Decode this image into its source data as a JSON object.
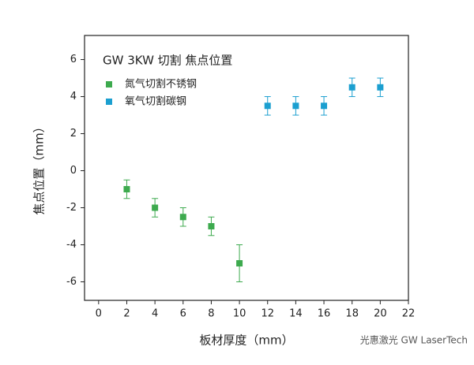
{
  "chart_data": {
    "type": "scatter",
    "title": "GW 3KW 切割 焦点位置",
    "x_label": "板材厚度（mm）",
    "y_label": "焦点位置（mm）",
    "series": [
      {
        "name": "氮气切割不锈钢",
        "color": "#3daa4e",
        "x": [
          2,
          4,
          6,
          8,
          10
        ],
        "values": [
          -1,
          -2,
          -2.5,
          -3,
          -5
        ],
        "errors": [
          0.5,
          0.5,
          0.5,
          0.5,
          1
        ]
      },
      {
        "name": "氧气切割碳钢",
        "color": "#1b9fd0",
        "x": [
          12,
          14,
          16,
          18,
          20
        ],
        "values": [
          3.5,
          3.5,
          3.5,
          4.5,
          4.5
        ],
        "errors": [
          0.5,
          0.5,
          0.5,
          0.5,
          0.5
        ]
      }
    ],
    "xlim": [
      -1,
      22
    ],
    "xticks": [
      0,
      2,
      4,
      6,
      8,
      10,
      12,
      14,
      16,
      18,
      20,
      22
    ],
    "ylim": [
      -7,
      7.3
    ],
    "yticks": [
      -6,
      -4,
      -2,
      0,
      2,
      4,
      6
    ],
    "legend": "upper-left",
    "watermark": "光惠激光 GW LaserTech"
  }
}
